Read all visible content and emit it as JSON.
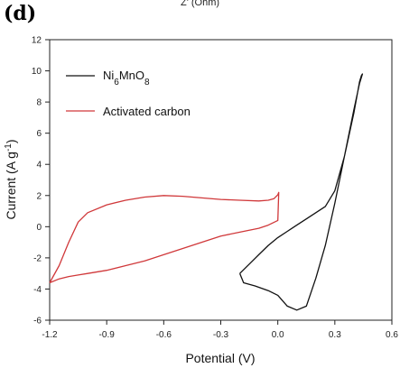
{
  "header": {
    "panel_label": "(d)",
    "cut_text": "Z' (Ohm)"
  },
  "chart_data": {
    "type": "line",
    "xlabel": "Potential (V)",
    "ylabel": "Current (A g",
    "ylabel_sup": "-1",
    "ylabel_end": ")",
    "xlim": [
      -1.2,
      0.6
    ],
    "ylim": [
      -6,
      12
    ],
    "xticks": [
      -1.2,
      -0.9,
      -0.6,
      -0.3,
      0.0,
      0.3,
      0.6
    ],
    "xtick_labels": [
      "-1.2",
      "-0.9",
      "-0.6",
      "-0.3",
      "0.0",
      "0.3",
      "0.6"
    ],
    "yticks": [
      -6,
      -4,
      -2,
      0,
      2,
      4,
      6,
      8,
      10,
      12
    ],
    "ytick_labels": [
      "-6",
      "-4",
      "-2",
      "0",
      "2",
      "4",
      "6",
      "8",
      "10",
      "12"
    ],
    "grid": false,
    "legend_position": "top-left",
    "series": [
      {
        "name_parts": [
          "Ni",
          "6",
          "MnO",
          "8"
        ],
        "color": "#111111",
        "x": [
          -0.2,
          -0.18,
          -0.12,
          -0.05,
          0.0,
          0.05,
          0.1,
          0.15,
          0.2,
          0.25,
          0.3,
          0.35,
          0.4,
          0.43,
          0.445,
          0.44,
          0.43,
          0.4,
          0.35,
          0.3,
          0.25,
          0.2,
          0.15,
          0.1,
          0.05,
          0.0,
          -0.05,
          -0.1,
          -0.15,
          -0.2
        ],
        "y": [
          -3.0,
          -3.6,
          -3.8,
          -4.1,
          -4.4,
          -5.1,
          -5.35,
          -5.1,
          -3.3,
          -1.2,
          1.5,
          4.5,
          7.5,
          9.2,
          9.8,
          9.7,
          9.3,
          7.3,
          4.5,
          2.3,
          1.3,
          0.9,
          0.5,
          0.1,
          -0.3,
          -0.7,
          -1.2,
          -1.8,
          -2.4,
          -3.0
        ]
      },
      {
        "name": "Activated carbon",
        "color": "#d0383a",
        "x": [
          -1.2,
          -1.15,
          -1.1,
          -1.05,
          -1.0,
          -0.9,
          -0.8,
          -0.7,
          -0.6,
          -0.5,
          -0.4,
          -0.3,
          -0.2,
          -0.1,
          -0.05,
          -0.02,
          0.0,
          0.005,
          0.0,
          -0.05,
          -0.1,
          -0.2,
          -0.3,
          -0.4,
          -0.5,
          -0.6,
          -0.7,
          -0.8,
          -0.9,
          -1.0,
          -1.05,
          -1.1,
          -1.15,
          -1.2
        ],
        "y": [
          -3.6,
          -2.5,
          -1.0,
          0.3,
          0.9,
          1.4,
          1.7,
          1.9,
          2.0,
          1.95,
          1.85,
          1.75,
          1.7,
          1.65,
          1.7,
          1.8,
          2.05,
          2.2,
          0.4,
          0.1,
          -0.1,
          -0.35,
          -0.6,
          -1.0,
          -1.4,
          -1.8,
          -2.2,
          -2.5,
          -2.8,
          -3.0,
          -3.1,
          -3.2,
          -3.35,
          -3.6
        ]
      }
    ],
    "legend": [
      {
        "label_parts": [
          "Ni",
          "6",
          "MnO",
          "8"
        ],
        "color": "#111111"
      },
      {
        "label": "Activated carbon",
        "color": "#d0383a"
      }
    ]
  }
}
